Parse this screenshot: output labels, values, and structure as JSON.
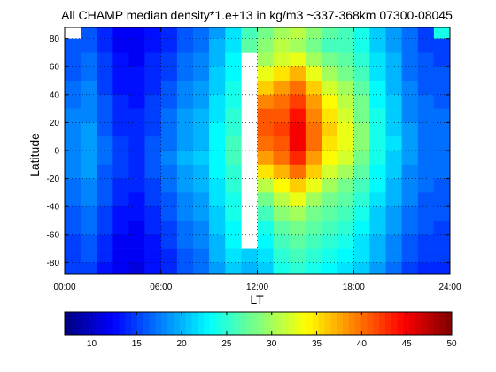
{
  "chart_data": {
    "type": "heatmap",
    "title": "All CHAMP median density*1.e+13 in kg/m3 ~337-368km 07300-08045",
    "xlabel": "LT",
    "ylabel": "Latitude",
    "xlim_hours": [
      0,
      24
    ],
    "ylim": [
      -88,
      88
    ],
    "x_ticks": [
      "00:00",
      "06:00",
      "12:00",
      "18:00",
      "24:00"
    ],
    "y_ticks": [
      "80",
      "60",
      "40",
      "20",
      "0",
      "-20",
      "-40",
      "-60",
      "-80"
    ],
    "grid": "dotted",
    "colorbar": {
      "ticks": [
        "10",
        "15",
        "20",
        "25",
        "30",
        "35",
        "40",
        "45",
        "50"
      ],
      "range": [
        7,
        50
      ]
    },
    "lt_bin_start_hours": [
      0,
      1,
      2,
      3,
      4,
      5,
      6,
      7,
      8,
      9,
      10,
      11,
      12,
      13,
      14,
      15,
      16,
      17,
      18,
      19,
      20,
      21,
      22,
      23
    ],
    "lat_bin_centers": [
      85,
      75,
      65,
      55,
      45,
      35,
      25,
      15,
      5,
      -5,
      -15,
      -25,
      -35,
      -45,
      -55,
      -65,
      -75,
      -85
    ],
    "density": [
      [
        null,
        16,
        14,
        12,
        12,
        13,
        14,
        16,
        17,
        19,
        22,
        26,
        28,
        30,
        31,
        29,
        27,
        26,
        24,
        21,
        19,
        17,
        15,
        24
      ],
      [
        16,
        16,
        14,
        12,
        12,
        13,
        14,
        16,
        17,
        20,
        22,
        27,
        29,
        31,
        30,
        28,
        26,
        26,
        24,
        21,
        19,
        17,
        15,
        15
      ],
      [
        16,
        17,
        15,
        13,
        12,
        14,
        15,
        17,
        18,
        20,
        23,
        null,
        30,
        32,
        33,
        30,
        28,
        27,
        25,
        22,
        20,
        17,
        16,
        15
      ],
      [
        16,
        17,
        15,
        13,
        13,
        14,
        15,
        17,
        18,
        21,
        23,
        null,
        33,
        35,
        37,
        33,
        30,
        28,
        26,
        22,
        20,
        17,
        16,
        16
      ],
      [
        17,
        18,
        15,
        13,
        13,
        14,
        16,
        18,
        19,
        21,
        24,
        null,
        36,
        38,
        40,
        36,
        32,
        30,
        27,
        23,
        20,
        18,
        16,
        16
      ],
      [
        17,
        18,
        16,
        14,
        13,
        15,
        16,
        18,
        19,
        22,
        24,
        null,
        39,
        40,
        42,
        38,
        34,
        31,
        28,
        23,
        21,
        18,
        17,
        16
      ],
      [
        18,
        18,
        16,
        14,
        14,
        15,
        17,
        19,
        20,
        22,
        25,
        null,
        41,
        41,
        44,
        39,
        35,
        32,
        28,
        24,
        21,
        18,
        17,
        17
      ],
      [
        18,
        19,
        16,
        14,
        14,
        15,
        17,
        19,
        20,
        23,
        25,
        null,
        41,
        42,
        45,
        40,
        36,
        33,
        29,
        24,
        21,
        19,
        17,
        17
      ],
      [
        18,
        19,
        17,
        15,
        14,
        16,
        17,
        19,
        20,
        23,
        26,
        null,
        40,
        41,
        45,
        40,
        35,
        33,
        29,
        24,
        22,
        19,
        17,
        17
      ],
      [
        18,
        19,
        17,
        15,
        14,
        16,
        18,
        20,
        21,
        23,
        26,
        null,
        38,
        40,
        43,
        38,
        34,
        32,
        28,
        24,
        21,
        19,
        17,
        17
      ],
      [
        18,
        19,
        16,
        15,
        14,
        16,
        17,
        19,
        20,
        23,
        25,
        null,
        35,
        37,
        40,
        36,
        32,
        30,
        27,
        23,
        21,
        18,
        17,
        17
      ],
      [
        17,
        18,
        16,
        14,
        14,
        15,
        17,
        19,
        20,
        22,
        25,
        null,
        31,
        34,
        36,
        33,
        30,
        28,
        26,
        23,
        20,
        18,
        17,
        16
      ],
      [
        17,
        18,
        16,
        14,
        13,
        15,
        16,
        18,
        19,
        22,
        24,
        null,
        28,
        31,
        33,
        30,
        28,
        27,
        25,
        22,
        20,
        18,
        16,
        16
      ],
      [
        16,
        17,
        15,
        13,
        13,
        14,
        16,
        18,
        19,
        21,
        24,
        null,
        26,
        29,
        30,
        28,
        27,
        26,
        24,
        21,
        19,
        17,
        16,
        16
      ],
      [
        16,
        17,
        15,
        13,
        12,
        14,
        15,
        17,
        18,
        21,
        23,
        null,
        24,
        27,
        28,
        27,
        26,
        25,
        23,
        21,
        19,
        17,
        16,
        15
      ],
      [
        15,
        16,
        14,
        12,
        12,
        13,
        15,
        17,
        18,
        20,
        23,
        null,
        23,
        26,
        27,
        26,
        25,
        24,
        22,
        20,
        18,
        16,
        15,
        15
      ],
      [
        15,
        16,
        14,
        12,
        12,
        13,
        14,
        16,
        17,
        20,
        22,
        21,
        22,
        25,
        26,
        25,
        24,
        23,
        22,
        20,
        18,
        16,
        15,
        15
      ],
      [
        15,
        15,
        13,
        12,
        11,
        13,
        14,
        16,
        17,
        19,
        21,
        20,
        21,
        24,
        25,
        24,
        23,
        22,
        21,
        19,
        17,
        15,
        14,
        14
      ]
    ]
  }
}
